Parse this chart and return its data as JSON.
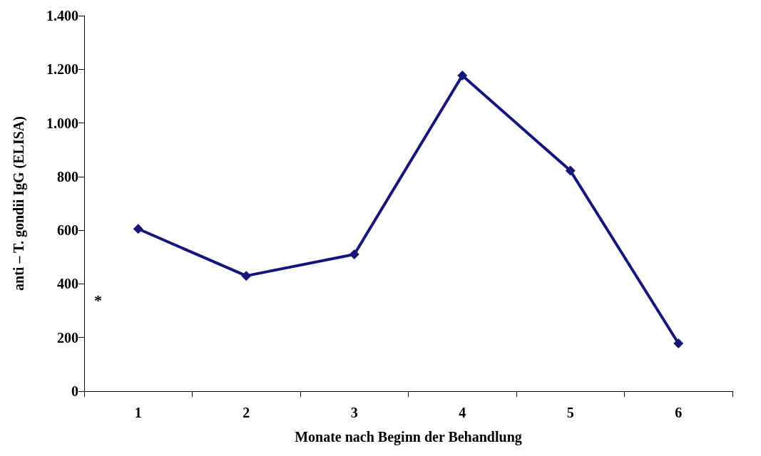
{
  "chart_data": {
    "type": "line",
    "xlabel": "Monate nach Beginn der Behandlung",
    "ylabel": "anti – T. gondii IgG (ELISA)",
    "categories": [
      "1",
      "2",
      "3",
      "4",
      "5",
      "6"
    ],
    "series": [
      {
        "color": "#16167a",
        "values": [
          605,
          430,
          510,
          1177,
          822,
          178
        ]
      }
    ],
    "ylim": [
      0,
      1400
    ],
    "yticks": [
      0,
      200,
      400,
      600,
      800,
      {
        "value": 1000,
        "label": "1.000"
      },
      {
        "value": 1200,
        "label": "1.200"
      },
      {
        "value": 1400,
        "label": "1.400"
      }
    ],
    "annotations": [
      "*"
    ],
    "grid": false,
    "marker": "diamond",
    "line_style": "solid"
  }
}
